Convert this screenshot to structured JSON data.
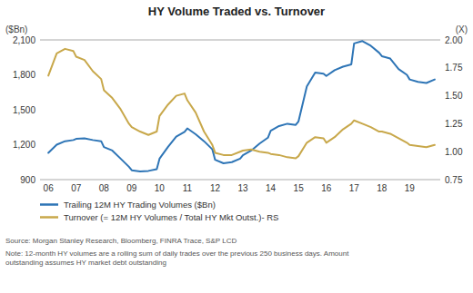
{
  "chart_data": {
    "type": "line",
    "title": "HY Volume Traded vs. Turnover",
    "y_label": "($Bn)",
    "y2_label": "(X)",
    "source": "Source: Morgan Stanley Research, Bloomberg, FINRA Trace, S&P LCD",
    "note": "Note: 12-month HY volumes are a rolling sum of daily trades over the previous 250 business days. Amount\noutstanding assumes HY market debt outstanding",
    "x": [
      2006.0,
      2006.3,
      2006.6,
      2006.9,
      2007.0,
      2007.3,
      2007.6,
      2007.9,
      2008.0,
      2008.3,
      2008.6,
      2008.9,
      2009.0,
      2009.3,
      2009.6,
      2009.9,
      2010.0,
      2010.3,
      2010.6,
      2010.9,
      2011.0,
      2011.3,
      2011.6,
      2011.9,
      2012.0,
      2012.3,
      2012.6,
      2012.9,
      2013.0,
      2013.3,
      2013.6,
      2013.9,
      2014.0,
      2014.3,
      2014.6,
      2014.9,
      2015.0,
      2015.3,
      2015.6,
      2015.9,
      2016.0,
      2016.3,
      2016.6,
      2016.9,
      2017.0,
      2017.3,
      2017.6,
      2017.9,
      2018.0,
      2018.3,
      2018.6,
      2018.9,
      2019.0,
      2019.3,
      2019.6,
      2019.9
    ],
    "xlim": [
      2005.7,
      2020.1
    ],
    "xticks": [
      {
        "value": 2006,
        "label": "06"
      },
      {
        "value": 2007,
        "label": "07"
      },
      {
        "value": 2008,
        "label": "08"
      },
      {
        "value": 2009,
        "label": "09"
      },
      {
        "value": 2010,
        "label": "10"
      },
      {
        "value": 2011,
        "label": "11"
      },
      {
        "value": 2012,
        "label": "12"
      },
      {
        "value": 2013,
        "label": "13"
      },
      {
        "value": 2014,
        "label": "14"
      },
      {
        "value": 2015,
        "label": "15"
      },
      {
        "value": 2016,
        "label": "16"
      },
      {
        "value": 2017,
        "label": "17"
      },
      {
        "value": 2018,
        "label": "18"
      },
      {
        "value": 2019,
        "label": "19"
      }
    ],
    "ylim": [
      900,
      2100
    ],
    "yticks": [
      900,
      {
        "value": 1200,
        "label": "1,200"
      },
      {
        "value": 1500,
        "label": "1,500"
      },
      {
        "value": 1800,
        "label": "1,800"
      },
      {
        "value": 2100,
        "label": "2,100"
      }
    ],
    "y2lim": [
      0.75,
      2.0
    ],
    "y2ticks": [
      0.75,
      {
        "value": 1.0,
        "label": "1.00"
      },
      1.25,
      {
        "value": 1.5,
        "label": "1.50"
      },
      1.75,
      {
        "value": 2.0,
        "label": "2.00"
      }
    ],
    "grid": false,
    "legend": "bottom",
    "series": [
      {
        "name": "Trailing 12M HY Trading Volumes ($Bn)",
        "color": "#2e75b6",
        "axis": "y",
        "values": [
          1130,
          1200,
          1230,
          1240,
          1250,
          1255,
          1240,
          1230,
          1180,
          1150,
          1080,
          1010,
          980,
          970,
          975,
          990,
          1080,
          1180,
          1270,
          1310,
          1340,
          1290,
          1230,
          1160,
          1070,
          1040,
          1050,
          1080,
          1110,
          1150,
          1210,
          1260,
          1320,
          1360,
          1380,
          1370,
          1400,
          1700,
          1820,
          1810,
          1790,
          1840,
          1870,
          1890,
          2070,
          2090,
          2050,
          1990,
          1960,
          1940,
          1850,
          1800,
          1760,
          1740,
          1730,
          1760
        ]
      },
      {
        "name": "Turnover (= 12M HY Volumes / Total HY Mkt Outst.)- RS",
        "color": "#c8a84b",
        "axis": "y2",
        "values": [
          1.68,
          1.88,
          1.92,
          1.9,
          1.85,
          1.82,
          1.72,
          1.65,
          1.55,
          1.48,
          1.38,
          1.25,
          1.22,
          1.18,
          1.15,
          1.18,
          1.32,
          1.42,
          1.5,
          1.52,
          1.46,
          1.35,
          1.18,
          1.06,
          0.99,
          0.97,
          0.97,
          1.0,
          1.01,
          1.02,
          1.0,
          0.99,
          0.98,
          0.97,
          0.95,
          0.94,
          0.96,
          1.08,
          1.13,
          1.12,
          1.08,
          1.13,
          1.2,
          1.25,
          1.28,
          1.25,
          1.22,
          1.18,
          1.18,
          1.16,
          1.12,
          1.08,
          1.06,
          1.05,
          1.04,
          1.06
        ]
      }
    ]
  }
}
